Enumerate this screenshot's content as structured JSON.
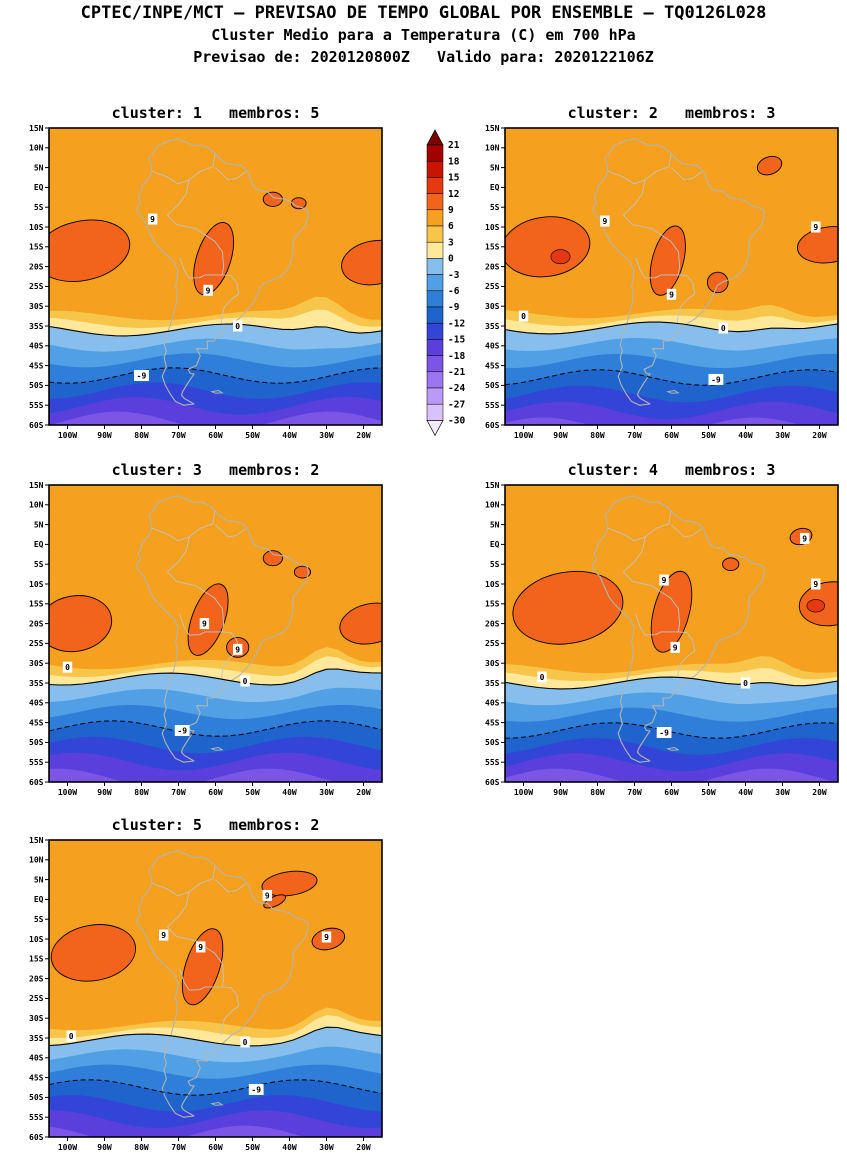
{
  "header": {
    "line1": "CPTEC/INPE/MCT — PREVISAO DE TEMPO GLOBAL POR ENSEMBLE — TQ0126L028",
    "line2": "Cluster Medio para a Temperatura (C) em 700 hPa",
    "line3": "Previsao de: 2020120800Z   Valido para: 2020122106Z"
  },
  "axes": {
    "lat_ticks": [
      [
        "15N",
        15
      ],
      [
        "10N",
        10
      ],
      [
        "5N",
        5
      ],
      [
        "EQ",
        0
      ],
      [
        "5S",
        -5
      ],
      [
        "10S",
        -10
      ],
      [
        "15S",
        -15
      ],
      [
        "20S",
        -20
      ],
      [
        "25S",
        -25
      ],
      [
        "30S",
        -30
      ],
      [
        "35S",
        -35
      ],
      [
        "40S",
        -40
      ],
      [
        "45S",
        -45
      ],
      [
        "50S",
        -50
      ],
      [
        "55S",
        -55
      ],
      [
        "60S",
        -60
      ]
    ],
    "lon_ticks": [
      [
        "100W",
        -100
      ],
      [
        "90W",
        -90
      ],
      [
        "80W",
        -80
      ],
      [
        "70W",
        -70
      ],
      [
        "60W",
        -60
      ],
      [
        "50W",
        -50
      ],
      [
        "40W",
        -40
      ],
      [
        "30W",
        -30
      ],
      [
        "20W",
        -20
      ]
    ]
  },
  "chart_data": {
    "type": "contour-map",
    "variable": "Cluster Medio para a Temperatura (C) em 700 hPa",
    "model": "CPTEC/INPE/MCT PREVISAO DE TEMPO GLOBAL POR ENSEMBLE TQ0126L028",
    "forecast_init": "2020120800Z",
    "forecast_valid": "2020122106Z",
    "labeled_contours_C": [
      9,
      0,
      -9
    ],
    "legend": {
      "values": [
        21,
        18,
        15,
        12,
        9,
        6,
        3,
        0,
        -3,
        -6,
        -9,
        -12,
        -15,
        -18,
        -21,
        -24,
        -27,
        -30
      ],
      "cell_colors": [
        "#a40000",
        "#c81400",
        "#e63911",
        "#f2641c",
        "#f5a01e",
        "#f8c54b",
        "#ffe89a",
        "#86bfed",
        "#519fe4",
        "#2f7fd8",
        "#1f63cd",
        "#3345d6",
        "#5a3fdc",
        "#7b55e6",
        "#9b76ee",
        "#bb99f4",
        "#d9c2fa"
      ],
      "over_color": "#7c0000",
      "under_color": "#f2eafd"
    },
    "panels": [
      {
        "title": "cluster: 1   membros: 5",
        "cluster": 1,
        "membros": 5,
        "iso": {
          "t9": -30.5,
          "t0": -36,
          "tm9": -47.5
        },
        "phase": 0.4,
        "bulge_amp": 5,
        "bulge_lon": -31,
        "blobs": [
          [
            -96,
            -16,
            13,
            7.5,
            -12
          ],
          [
            -60.5,
            -18,
            4.6,
            9.5,
            18
          ],
          [
            -17,
            -19,
            9,
            5.5,
            -10
          ],
          [
            -44.5,
            -3,
            2.6,
            1.8,
            0
          ],
          [
            -37.5,
            -4,
            2.0,
            1.4,
            0
          ]
        ],
        "cores": [],
        "labels": [
          [
            "9",
            -77,
            -8
          ],
          [
            "9",
            -62,
            -26
          ],
          [
            "0",
            -54,
            -35
          ],
          [
            "-9",
            -80,
            -47.5
          ]
        ]
      },
      {
        "title": "cluster: 2   membros: 3",
        "cluster": 2,
        "membros": 3,
        "iso": {
          "t9": -30,
          "t0": -35.5,
          "tm9": -48
        },
        "phase": 1.3,
        "bulge_amp": 3,
        "bulge_lon": -33,
        "blobs": [
          [
            -94,
            -15,
            12,
            7.5,
            -8
          ],
          [
            -61,
            -18.5,
            4.2,
            9,
            15
          ],
          [
            -47.5,
            -24,
            2.8,
            2.6,
            0
          ],
          [
            -17.5,
            -14.5,
            8.5,
            4.5,
            -8
          ],
          [
            -33.5,
            5.5,
            3.4,
            2.2,
            -20
          ]
        ],
        "cores": [
          [
            -90,
            -17.5,
            2.6,
            1.8,
            0
          ]
        ],
        "labels": [
          [
            "9",
            -78,
            -8.5
          ],
          [
            "9",
            -60,
            -27
          ],
          [
            "9",
            -21,
            -10
          ],
          [
            "0",
            -100,
            -32.5
          ],
          [
            "0",
            -46,
            -35.5
          ],
          [
            "-9",
            -48,
            -48.5
          ]
        ]
      },
      {
        "title": "cluster: 3   membros: 2",
        "cluster": 3,
        "membros": 2,
        "iso": {
          "t9": -28.5,
          "t0": -34,
          "tm9": -46.5
        },
        "phase": 2.2,
        "bulge_amp": 5.5,
        "bulge_lon": -30,
        "blobs": [
          [
            -98,
            -20,
            10,
            7,
            -10
          ],
          [
            -62,
            -19,
            4.4,
            9.5,
            20
          ],
          [
            -54,
            -26,
            3,
            2.5,
            0
          ],
          [
            -18,
            -20,
            8.5,
            5,
            -12
          ],
          [
            -44.5,
            -3.5,
            2.6,
            1.9,
            0
          ],
          [
            -36.5,
            -7,
            2.2,
            1.5,
            0
          ]
        ],
        "cores": [],
        "labels": [
          [
            "9",
            -63,
            -20
          ],
          [
            "9",
            -54,
            -26.5
          ],
          [
            "0",
            -100,
            -31
          ],
          [
            "0",
            -52,
            -34.5
          ],
          [
            "-9",
            -69,
            -47
          ]
        ]
      },
      {
        "title": "cluster: 4   membros: 3",
        "cluster": 4,
        "membros": 3,
        "iso": {
          "t9": -29.5,
          "t0": -35,
          "tm9": -47
        },
        "phase": 0.9,
        "bulge_amp": 3.5,
        "bulge_lon": -34,
        "blobs": [
          [
            -88,
            -16,
            15,
            9,
            -10
          ],
          [
            -60,
            -17,
            4.8,
            10.5,
            15
          ],
          [
            -17,
            -15,
            8.5,
            5.5,
            -8
          ],
          [
            -25,
            2,
            3,
            2,
            -15
          ],
          [
            -44,
            -5,
            2.2,
            1.6,
            0
          ]
        ],
        "cores": [
          [
            -21,
            -15.5,
            2.4,
            1.6,
            0
          ]
        ],
        "labels": [
          [
            "9",
            -62,
            -9
          ],
          [
            "9",
            -59,
            -26
          ],
          [
            "9",
            -24,
            1.5
          ],
          [
            "9",
            -21,
            -10
          ],
          [
            "0",
            -95,
            -33.5
          ],
          [
            "0",
            -40,
            -35
          ],
          [
            "-9",
            -62,
            -47.5
          ]
        ]
      },
      {
        "title": "cluster: 5   membros: 2",
        "cluster": 5,
        "membros": 2,
        "iso": {
          "t9": -30,
          "t0": -35.5,
          "tm9": -47.5
        },
        "phase": 2.9,
        "bulge_amp": 5,
        "bulge_lon": -30,
        "blobs": [
          [
            -93,
            -13.5,
            11.5,
            7,
            -10
          ],
          [
            -63.5,
            -17,
            4.6,
            10,
            18
          ],
          [
            -40,
            4,
            7.5,
            3,
            -8
          ],
          [
            -44,
            -0.5,
            3.2,
            1.2,
            -25
          ],
          [
            -29.5,
            -10,
            4.5,
            2.6,
            -15
          ]
        ],
        "cores": [],
        "labels": [
          [
            "9",
            -74,
            -9
          ],
          [
            "9",
            -64,
            -12
          ],
          [
            "9",
            -46,
            1
          ],
          [
            "9",
            -30,
            -9.5
          ],
          [
            "0",
            -99,
            -34.5
          ],
          [
            "0",
            -52,
            -36
          ],
          [
            "-9",
            -49,
            -48
          ]
        ]
      }
    ]
  },
  "basemap": {
    "coastline": [
      [
        -77,
        8.5
      ],
      [
        -75.5,
        10.6
      ],
      [
        -72.2,
        11.8
      ],
      [
        -70,
        12.3
      ],
      [
        -68,
        11.4
      ],
      [
        -66,
        10.6
      ],
      [
        -63.8,
        10.7
      ],
      [
        -61.5,
        9.8
      ],
      [
        -60,
        8.4
      ],
      [
        -58.5,
        7
      ],
      [
        -57,
        6
      ],
      [
        -55,
        5.8
      ],
      [
        -53,
        5.5
      ],
      [
        -51.5,
        4.2
      ],
      [
        -50.5,
        2
      ],
      [
        -49.8,
        0.3
      ],
      [
        -48.3,
        -0.8
      ],
      [
        -46,
        -1
      ],
      [
        -44.3,
        -2.6
      ],
      [
        -41.8,
        -2.9
      ],
      [
        -39.8,
        -3.5
      ],
      [
        -38.4,
        -4.6
      ],
      [
        -36.6,
        -5.1
      ],
      [
        -35.2,
        -5.6
      ],
      [
        -34.9,
        -7.2
      ],
      [
        -35.5,
        -9.3
      ],
      [
        -37.3,
        -11.3
      ],
      [
        -38.9,
        -13.2
      ],
      [
        -39.1,
        -15.5
      ],
      [
        -39.3,
        -17.9
      ],
      [
        -40.2,
        -20.3
      ],
      [
        -41.8,
        -22.2
      ],
      [
        -43.8,
        -23.1
      ],
      [
        -45.9,
        -23.8
      ],
      [
        -47.6,
        -24.7
      ],
      [
        -48.6,
        -26.9
      ],
      [
        -49.7,
        -29
      ],
      [
        -51.3,
        -30.9
      ],
      [
        -53.4,
        -33
      ],
      [
        -55.9,
        -34.5
      ],
      [
        -57.9,
        -36.2
      ],
      [
        -60.5,
        -38.8
      ],
      [
        -62.3,
        -38.8
      ],
      [
        -62.1,
        -40.8
      ],
      [
        -65.1,
        -40.7
      ],
      [
        -64.1,
        -42.5
      ],
      [
        -65.2,
        -45
      ],
      [
        -67.4,
        -45.9
      ],
      [
        -66.8,
        -47
      ],
      [
        -65.8,
        -47.1
      ],
      [
        -67.6,
        -49.6
      ],
      [
        -68.9,
        -51.6
      ],
      [
        -69.2,
        -52.5
      ],
      [
        -68.4,
        -53.3
      ],
      [
        -65.8,
        -54.7
      ],
      [
        -68.6,
        -55
      ],
      [
        -70.9,
        -54
      ],
      [
        -72.4,
        -51.9
      ],
      [
        -73.6,
        -49.9
      ],
      [
        -74.4,
        -47.7
      ],
      [
        -73.3,
        -45.3
      ],
      [
        -73.9,
        -43
      ],
      [
        -73.3,
        -41.3
      ],
      [
        -73.8,
        -39.7
      ],
      [
        -73.2,
        -37.2
      ],
      [
        -72,
        -34.2
      ],
      [
        -71.4,
        -32
      ],
      [
        -70.6,
        -29.3
      ],
      [
        -70.3,
        -26.6
      ],
      [
        -70.8,
        -24.8
      ],
      [
        -70.3,
        -22.7
      ],
      [
        -70.2,
        -20.6
      ],
      [
        -71.4,
        -18.6
      ],
      [
        -73.5,
        -16.9
      ],
      [
        -75.5,
        -15
      ],
      [
        -76.9,
        -13.3
      ],
      [
        -78.1,
        -10.7
      ],
      [
        -79.3,
        -8.2
      ],
      [
        -81,
        -6.4
      ],
      [
        -81.3,
        -5
      ],
      [
        -80.2,
        -3.7
      ],
      [
        -80.9,
        -2.4
      ],
      [
        -80.1,
        -1
      ],
      [
        -79.9,
        0.4
      ],
      [
        -78.8,
        1.4
      ],
      [
        -77.8,
        2.6
      ],
      [
        -77.2,
        4.2
      ],
      [
        -77.6,
        6.3
      ],
      [
        -77.9,
        7.6
      ]
    ],
    "islands": [
      [
        [
          -61,
          -51.6
        ],
        [
          -59.2,
          -51.3
        ],
        [
          -58.2,
          -51.9
        ],
        [
          -60,
          -52
        ]
      ]
    ],
    "borders": [
      [
        [
          -73,
          -7
        ],
        [
          -70.5,
          -9.4
        ],
        [
          -65.4,
          -10.4
        ],
        [
          -60.2,
          -13.6
        ],
        [
          -58.1,
          -16.3
        ],
        [
          -57.8,
          -20.1
        ],
        [
          -58.2,
          -22.1
        ],
        [
          -55.8,
          -22.3
        ],
        [
          -54.3,
          -24.1
        ],
        [
          -53.7,
          -26.9
        ],
        [
          -55.7,
          -28.3
        ],
        [
          -57.6,
          -30.2
        ],
        [
          -58.2,
          -32.4
        ],
        [
          -58.5,
          -34.4
        ]
      ],
      [
        [
          -69.7,
          -17.6
        ],
        [
          -68.5,
          -20.9
        ],
        [
          -67.1,
          -22.9
        ],
        [
          -64.3,
          -22.8
        ],
        [
          -62.8,
          -22.1
        ],
        [
          -58.2,
          -22.1
        ]
      ],
      [
        [
          -77.3,
          4.1
        ],
        [
          -73.1,
          2.7
        ],
        [
          -70.1,
          0.9
        ],
        [
          -67.1,
          1.9
        ],
        [
          -67.9,
          -1.6
        ],
        [
          -69.9,
          -4.2
        ],
        [
          -73,
          -7
        ]
      ],
      [
        [
          -67.1,
          1.9
        ],
        [
          -64.1,
          4.1
        ],
        [
          -60.7,
          5.2
        ],
        [
          -60.1,
          8.4
        ]
      ],
      [
        [
          -60.1,
          5
        ],
        [
          -56.5,
          1.9
        ],
        [
          -54.2,
          2.3
        ],
        [
          -51.8,
          4
        ]
      ]
    ]
  }
}
